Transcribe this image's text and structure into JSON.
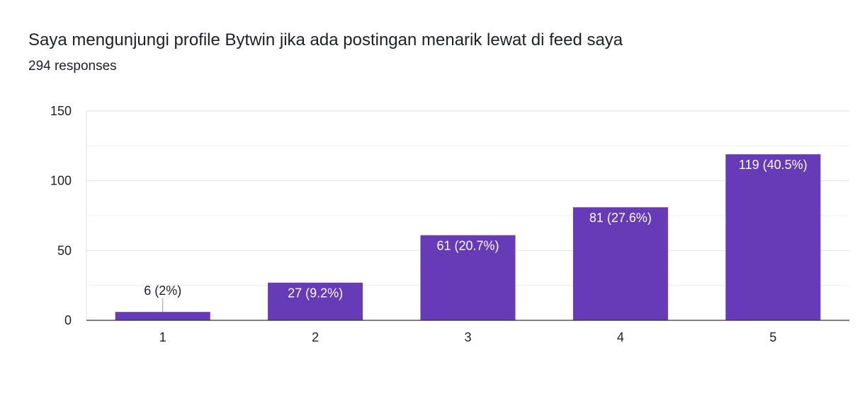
{
  "chart_data": {
    "type": "bar",
    "title": "Saya mengunjungi profile Bytwin jika ada postingan menarik lewat di feed saya",
    "subtitle": "294 responses",
    "xlabel": "",
    "ylabel": "",
    "categories": [
      "1",
      "2",
      "3",
      "4",
      "5"
    ],
    "values": [
      6,
      27,
      61,
      81,
      119
    ],
    "data_labels": [
      "6 (2%)",
      "27 (9.2%)",
      "61 (20.7%)",
      "81 (27.6%)",
      "119 (40.5%)"
    ],
    "ylim": [
      0,
      150
    ],
    "yticks": [
      0,
      50,
      100,
      150
    ],
    "grid": true,
    "bar_color": "#673ab7",
    "legend": "none"
  }
}
